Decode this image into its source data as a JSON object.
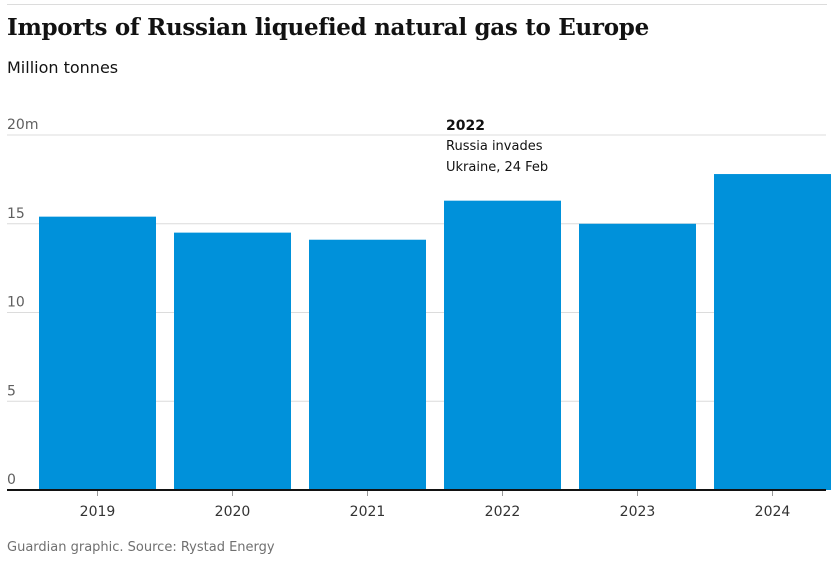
{
  "header": {
    "title": "Imports of Russian liquefied natural gas to Europe",
    "subtitle": "Million tonnes"
  },
  "footer": {
    "source": "Guardian graphic. Source: Rystad Energy"
  },
  "chart_data": {
    "type": "bar",
    "categories": [
      "2019",
      "2020",
      "2021",
      "2022",
      "2023",
      "2024"
    ],
    "values": [
      15.4,
      14.5,
      14.1,
      16.3,
      15.0,
      17.8
    ],
    "title": "Imports of Russian liquefied natural gas to Europe",
    "ylabel": "Million tonnes",
    "ylim": [
      0,
      20
    ],
    "yticks": [
      0,
      5,
      10,
      15,
      20
    ],
    "ytick_labels": [
      "0",
      "5",
      "10",
      "15",
      "20m"
    ],
    "grid": true,
    "bar_color": "#0091da",
    "annotation": {
      "category": "2022",
      "heading": "2022",
      "lines": [
        "Russia invades",
        "Ukraine, 24 Feb"
      ]
    }
  }
}
